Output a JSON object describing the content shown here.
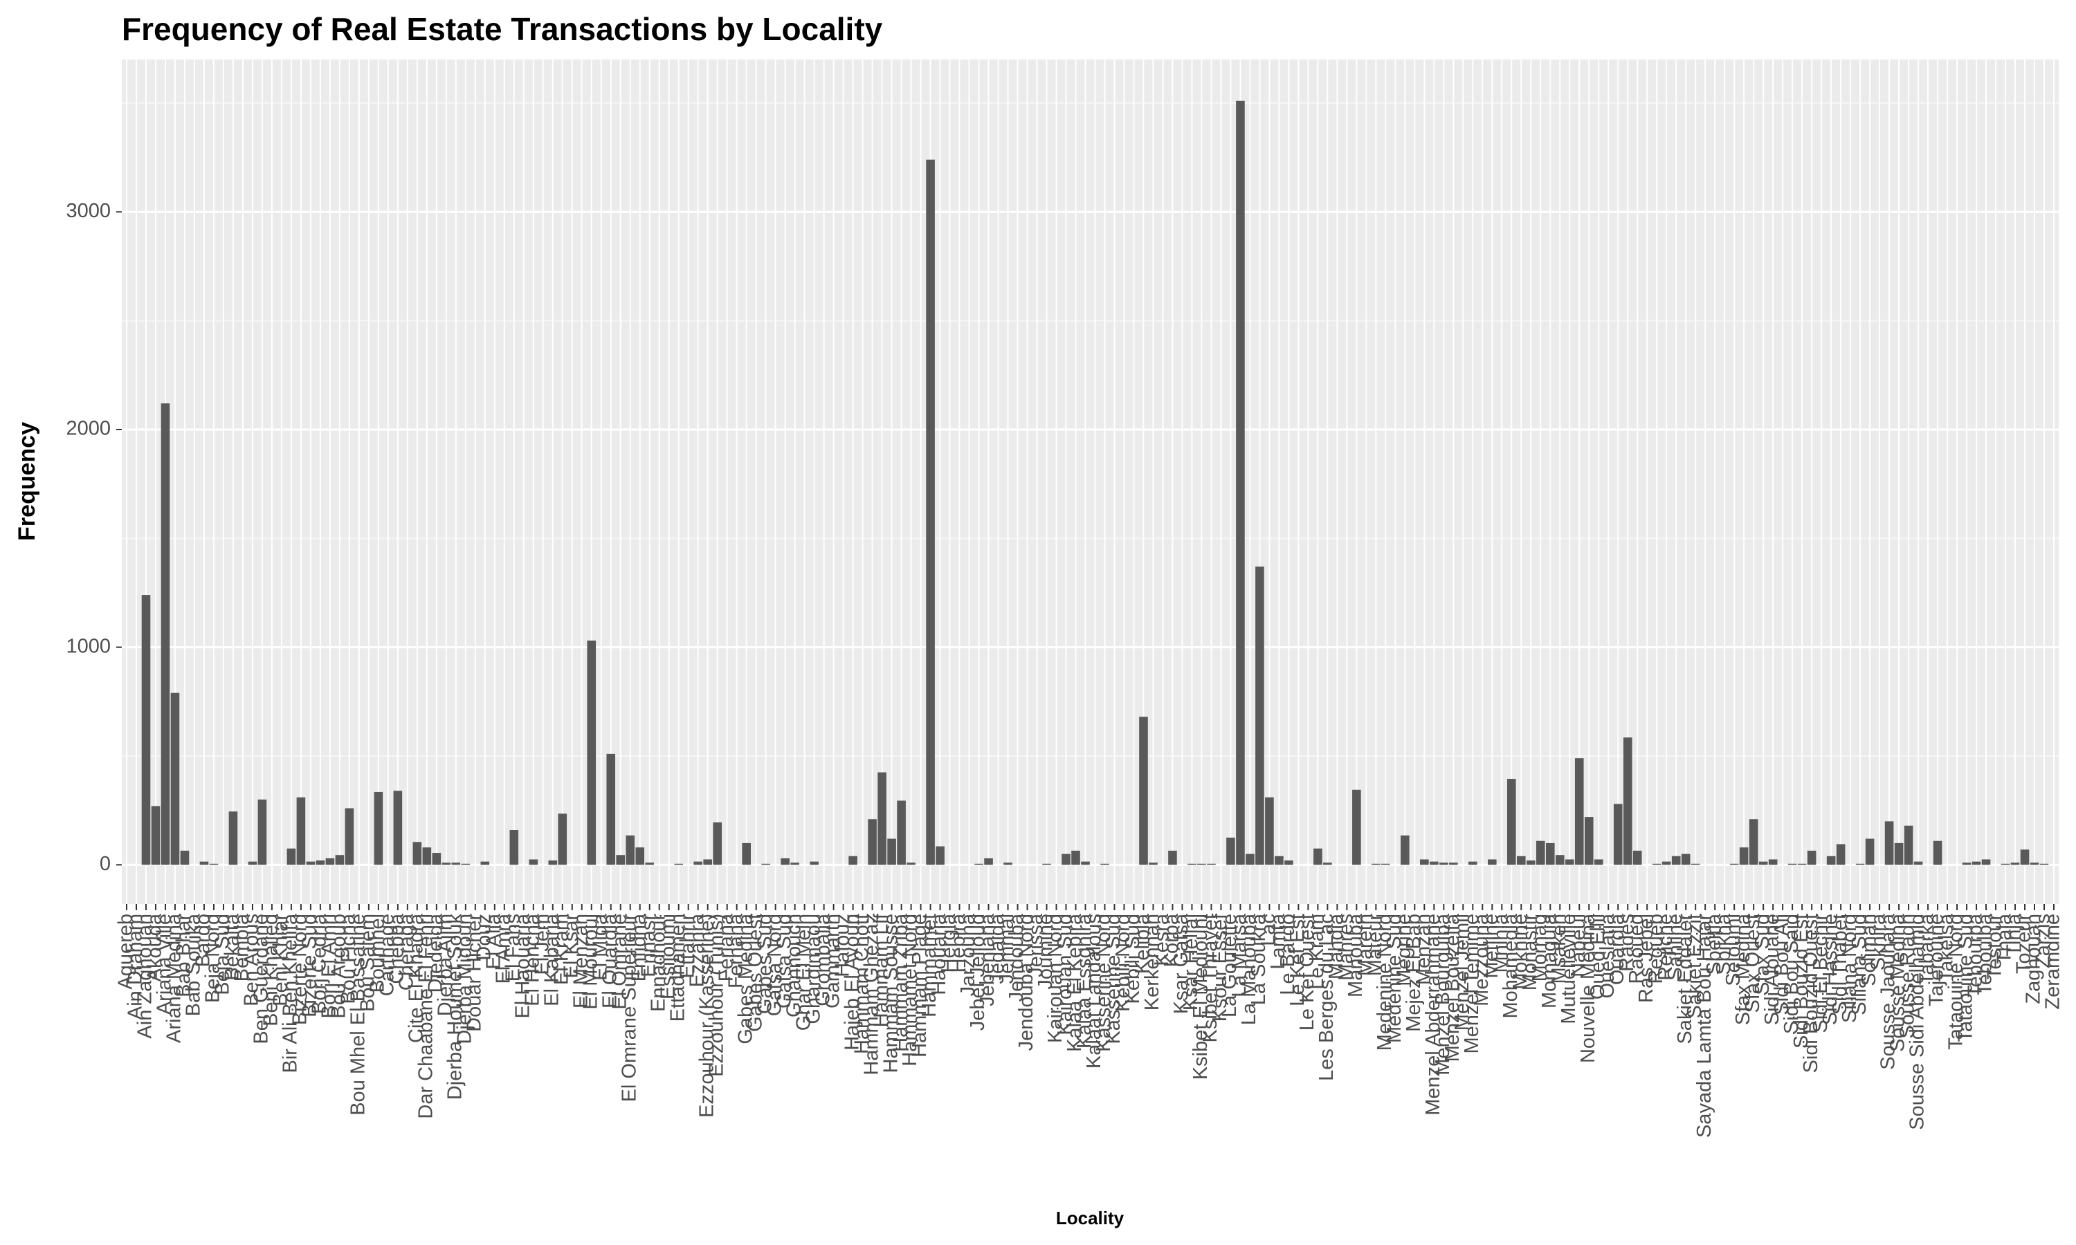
{
  "chart_data": {
    "type": "bar",
    "title": "Frequency of Real Estate Transactions by Locality",
    "x_label": "Locality",
    "y_label": "Frequency",
    "color": "#595959",
    "grid": true,
    "ylim": [
      -180,
      3700
    ],
    "yticks": [
      0,
      1000,
      2000,
      3000
    ],
    "categories": [
      "Aguereb",
      "Ain Draham",
      "Ain Zaghouan",
      "Akouda",
      "Ariana Ville",
      "Ariana Medina",
      "Bab Bhar",
      "Bab Souika",
      "Bardo",
      "Beja Nord",
      "Beja Sud",
      "Bekalta",
      "Bembla",
      "Ben Arous",
      "Ben Guerdane",
      "Beni Khalled",
      "Beni Khiar",
      "Bir Ali Ben Khelifa",
      "Bizerte Nord",
      "Bizerte Sud",
      "Borj Cedria",
      "Borj El Amri",
      "Bou Argoub",
      "Bou Ficha",
      "Bou Mhel El Bassatine",
      "Bou Salem",
      "Boumhel",
      "Carthage",
      "Chebba",
      "Cheraga",
      "Cite El Khadra",
      "Dar Chaabane El Fehri",
      "Djedeida",
      "Djerba Ajim",
      "Djerba Houmet Souk",
      "Djerba Midoun",
      "Douar Hicher",
      "Douz",
      "El Alia",
      "El Amra",
      "El Fahs",
      "El Haouaria",
      "El Hencha",
      "El Jem",
      "El Kabaria",
      "El Kram",
      "El Ksar",
      "El Menzah",
      "El Mourouj",
      "El Mida",
      "El Ouardia",
      "El Omrane",
      "El Omrane Superieur",
      "Enfidha",
      "Ennasr",
      "Ennadhour",
      "Essijoumi",
      "Ettadhamen",
      "Ettahrir",
      "Ezzahra",
      "Ezzouhour (Kasserine)",
      "Ezzouhour (Tunis)",
      "Feriana",
      "Fernana",
      "Gabes Medina",
      "Gabes Ouest",
      "Gabes Sud",
      "Gafsa Nord",
      "Gafsa Sud",
      "Ghannouch",
      "Ghar El Melh",
      "Ghardimaou",
      "Grombalia",
      "Gammarth",
      "Hafouz",
      "Hajeb El Ayoun",
      "Hammam Chott",
      "Hammam Ghezaz",
      "Hammam Lif",
      "Hammam Sousse",
      "Hammam Zriba",
      "Hammamet Nord",
      "Hammam Plage",
      "Hammamet",
      "Haouaria",
      "Hergla",
      "Hebira",
      "Jarzouna",
      "Jebel Jelloud",
      "Jebeniana",
      "Jedaida",
      "Jemmal",
      "Jendouba",
      "Jendouba Nord",
      "Jerissa",
      "Joumine",
      "Kairouan Nord",
      "Kairouan Sud",
      "Kalaa El Kebira",
      "Kalaa Essghira",
      "Kalaat Landalous",
      "Kasserine Nord",
      "Kasserine Sud",
      "Kebili Nord",
      "Kebili Sud",
      "Kelibia",
      "Kerkennah",
      "Kesra",
      "Korba",
      "Ksar Gafsa",
      "Ksar Hellal",
      "Ksibet El Mediouni",
      "Ksibet Thrayet",
      "Ksour Essef",
      "La Goulette",
      "La Marsa",
      "La Manouba",
      "La Soukra",
      "Lac",
      "Lamta",
      "Le Bardo",
      "Le Kef Est",
      "Le Kef Ouest",
      "Le Kram",
      "Les Berges du Lac",
      "Mahdia",
      "Mahres",
      "Manouba",
      "Mareth",
      "Mateur",
      "Medenine Nord",
      "Medenine Sud",
      "Megrine",
      "Mejez El Bab",
      "Menzah",
      "Menzel Abderrahmane",
      "Menzel Bourguiba",
      "Menzel Bouzelfa",
      "Menzel Jemil",
      "Menzel Temime",
      "Mezzouna",
      "Metline",
      "Mnihla",
      "Mohamedia",
      "Moknine",
      "Monastir",
      "Mornag",
      "Mornaguia",
      "Msaken",
      "Mutuelleville",
      "Nabeul",
      "Nouvelle Medina",
      "Oued Ellil",
      "Oueslatia",
      "Ouardia",
      "Rades",
      "Raoued",
      "Ras Jebel",
      "Regueb",
      "Rejiche",
      "Sahline",
      "Sakiet Eddaier",
      "Sakiet Ezzit",
      "Sayada Lamta Bou Hajar",
      "Sbeitla",
      "Sbikha",
      "Sejoumi",
      "Sfax Medina",
      "Sfax Ouest",
      "Sfax Sud",
      "Sidi Alouane",
      "Sidi Bou Ali",
      "Sidi Bou Said",
      "Sidi Bouzid Est",
      "Sidi Bouzid Ouest",
      "Sidi El Bechir",
      "Sidi Hassine",
      "Sidi Thabet",
      "Siliana Nord",
      "Siliana Sud",
      "Soliman",
      "Skhira",
      "Sousse Jaouhara",
      "Sousse Medina",
      "Sousse Riadh",
      "Sousse Sidi Abdelhamid",
      "Tabarka",
      "Tajerouine",
      "Takelsa",
      "Tataouine Nord",
      "Tataouine Sud",
      "Tebourba",
      "Teboulba",
      "Testour",
      "Thala",
      "Tinja",
      "Tozeur",
      "Zaghouan",
      "Zarzis",
      "Zeramdine"
    ],
    "values": [
      0,
      0,
      1240,
      270,
      2120,
      790,
      65,
      0,
      15,
      5,
      0,
      245,
      0,
      15,
      300,
      0,
      0,
      75,
      310,
      15,
      20,
      30,
      45,
      260,
      0,
      0,
      335,
      0,
      340,
      0,
      105,
      80,
      55,
      10,
      10,
      5,
      0,
      15,
      0,
      0,
      160,
      0,
      25,
      0,
      20,
      235,
      0,
      0,
      1030,
      0,
      510,
      45,
      135,
      80,
      10,
      0,
      0,
      5,
      0,
      15,
      25,
      195,
      0,
      0,
      100,
      0,
      5,
      0,
      30,
      10,
      0,
      15,
      0,
      0,
      0,
      40,
      0,
      210,
      425,
      120,
      295,
      10,
      0,
      3240,
      85,
      0,
      0,
      0,
      5,
      30,
      0,
      10,
      0,
      0,
      0,
      5,
      0,
      50,
      65,
      15,
      0,
      5,
      0,
      0,
      0,
      680,
      10,
      0,
      65,
      0,
      5,
      5,
      5,
      0,
      125,
      3510,
      50,
      1370,
      310,
      40,
      20,
      0,
      0,
      75,
      10,
      0,
      0,
      345,
      0,
      5,
      5,
      0,
      135,
      0,
      25,
      15,
      10,
      10,
      0,
      15,
      0,
      25,
      0,
      395,
      40,
      20,
      110,
      100,
      45,
      25,
      490,
      220,
      25,
      0,
      280,
      585,
      65,
      0,
      5,
      15,
      40,
      50,
      5,
      0,
      0,
      0,
      5,
      80,
      210,
      15,
      25,
      0,
      5,
      5,
      65,
      0,
      40,
      95,
      0,
      5,
      120,
      0,
      200,
      100,
      180,
      15,
      0,
      110,
      0,
      0,
      10,
      15,
      25,
      0,
      5,
      10,
      70,
      10,
      5,
      0
    ]
  }
}
